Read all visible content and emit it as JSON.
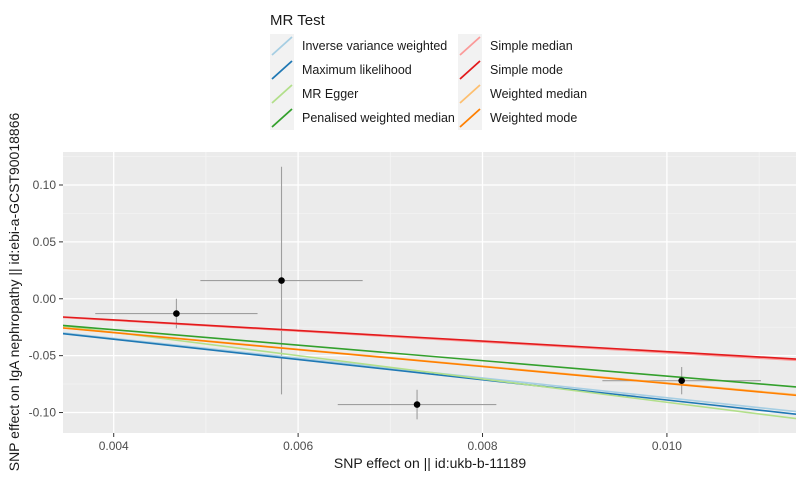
{
  "chart_data": {
    "type": "scatter",
    "xlabel": "SNP effect on || id:ukb-b-11189",
    "ylabel": "SNP effect on IgA nephropathy || id:ebi-a-GCST90018866",
    "xlim": [
      0.00345,
      0.0114
    ],
    "ylim": [
      -0.118,
      0.129
    ],
    "x_ticks": [
      0.004,
      0.006,
      0.008,
      0.01
    ],
    "x_tick_labels": [
      "0.004",
      "0.006",
      "0.008",
      "0.010"
    ],
    "y_ticks": [
      -0.1,
      -0.05,
      0.0,
      0.05,
      0.1
    ],
    "y_tick_labels": [
      "-0.10",
      "-0.05",
      "0.00",
      "0.05",
      "0.10"
    ],
    "grid": true,
    "legend": {
      "title": "MR Test",
      "placement": "top",
      "entries": [
        {
          "name": "Inverse variance weighted",
          "color": "#a6cee3"
        },
        {
          "name": "Maximum likelihood",
          "color": "#1f78b4"
        },
        {
          "name": "MR Egger",
          "color": "#b2df8a"
        },
        {
          "name": "Penalised weighted median",
          "color": "#33a02c"
        },
        {
          "name": "Simple median",
          "color": "#fb9a99"
        },
        {
          "name": "Simple mode",
          "color": "#e31a1c"
        },
        {
          "name": "Weighted median",
          "color": "#fdbf6f"
        },
        {
          "name": "Weighted mode",
          "color": "#ff7f00"
        }
      ]
    },
    "points": [
      {
        "x": 0.00468,
        "y": -0.013,
        "x_lo": 0.0038,
        "x_hi": 0.00556,
        "y_lo": -0.026,
        "y_hi": 0.0
      },
      {
        "x": 0.00582,
        "y": 0.016,
        "x_lo": 0.00494,
        "x_hi": 0.0067,
        "y_lo": -0.084,
        "y_hi": 0.116
      },
      {
        "x": 0.00729,
        "y": -0.093,
        "x_lo": 0.00643,
        "x_hi": 0.00815,
        "y_lo": -0.106,
        "y_hi": -0.08
      },
      {
        "x": 0.01016,
        "y": -0.072,
        "x_lo": 0.0093,
        "x_hi": 0.01102,
        "y_lo": -0.084,
        "y_hi": -0.06
      }
    ],
    "lines": [
      {
        "name": "Inverse variance weighted",
        "color": "#a6cee3",
        "slope": -8.7,
        "intercept": 0.0
      },
      {
        "name": "Maximum likelihood",
        "color": "#1f78b4",
        "slope": -8.9,
        "intercept": 0.0
      },
      {
        "name": "MR Egger",
        "color": "#b2df8a",
        "slope": -10.25,
        "intercept": 0.0115
      },
      {
        "name": "Penalised weighted median",
        "color": "#33a02c",
        "slope": -6.8,
        "intercept": 0.0
      },
      {
        "name": "Simple median",
        "color": "#fb9a99",
        "slope": -4.75,
        "intercept": 0.0
      },
      {
        "name": "Simple mode",
        "color": "#e31a1c",
        "slope": -4.65,
        "intercept": 0.0
      },
      {
        "name": "Weighted median",
        "color": "#fdbf6f",
        "slope": -7.4,
        "intercept": 0.0
      },
      {
        "name": "Weighted mode",
        "color": "#ff7f00",
        "slope": -7.45,
        "intercept": 0.0
      }
    ]
  }
}
